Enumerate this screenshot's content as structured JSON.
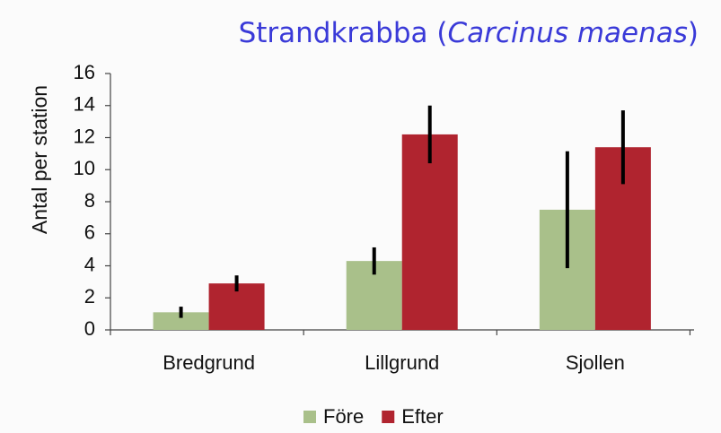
{
  "chart_data": {
    "type": "bar",
    "title": [
      "Strandkrabba (",
      "Carcinus maenas",
      ")"
    ],
    "ylabel": "Antal per station",
    "categories": [
      "Bredgrund",
      "Lillgrund",
      "Sjollen"
    ],
    "series": [
      {
        "name": "Före",
        "color": "#a9c08a",
        "values": [
          1.1,
          4.3,
          7.5
        ],
        "errors": [
          0.35,
          0.85,
          3.65
        ]
      },
      {
        "name": "Efter",
        "color": "#b0242f",
        "values": [
          2.9,
          12.2,
          11.4
        ],
        "errors": [
          0.5,
          1.8,
          2.3
        ]
      }
    ],
    "ylim": [
      0,
      16
    ],
    "yticks": [
      0,
      2,
      4,
      6,
      8,
      10,
      12,
      14,
      16
    ],
    "legend": "bottom"
  }
}
